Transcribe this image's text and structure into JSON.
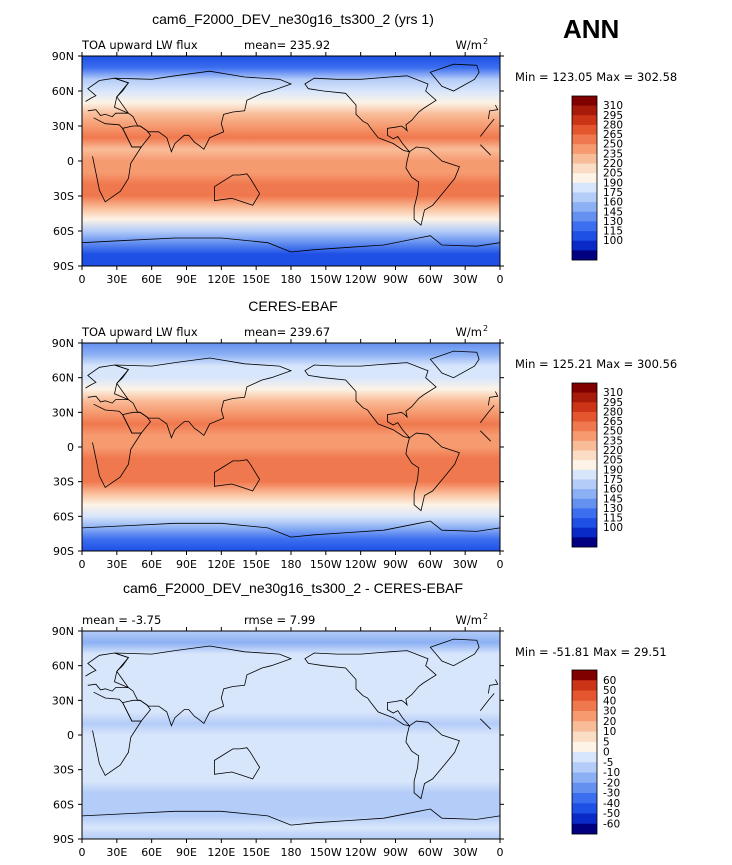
{
  "season": "ANN",
  "colors": {
    "abs_scale": [
      "#000080",
      "#0a2ac8",
      "#1e50e6",
      "#3c6ef0",
      "#6490f0",
      "#8cb0f4",
      "#b4ccf8",
      "#d8e6fb",
      "#fdf3e6",
      "#fbdcc4",
      "#f9bc98",
      "#f69a70",
      "#f0784e",
      "#e4562e",
      "#cc3418",
      "#a81a0a",
      "#800000"
    ],
    "diff_scale": [
      "#000080",
      "#0a2ac8",
      "#1e50e6",
      "#3c6ef0",
      "#6490f0",
      "#8cb0f4",
      "#b4ccf8",
      "#d8e6fb",
      "#fdf3e6",
      "#fbdcc4",
      "#f9bc98",
      "#f69a70",
      "#f0784e",
      "#e4562e",
      "#cc3418",
      "#800000"
    ]
  },
  "chart_data": [
    {
      "type": "heatmap",
      "title": "cam6_F2000_DEV_ne30g16_ts300_2 (yrs 1)",
      "left_label": "TOA upward LW flux",
      "stat1": "mean= 235.92",
      "stat2": "",
      "units": "W/m",
      "units_sup": "2",
      "minmax": "Min = 123.05 Max = 302.58",
      "min": 123.05,
      "max": 302.58,
      "mean": 235.92,
      "colorbar_levels": [
        "310",
        "295",
        "280",
        "265",
        "250",
        "235",
        "220",
        "205",
        "190",
        "175",
        "160",
        "145",
        "130",
        "115",
        "100"
      ],
      "xticks": [
        "0",
        "30E",
        "60E",
        "90E",
        "120E",
        "150E",
        "180",
        "150W",
        "120W",
        "90W",
        "60W",
        "30W",
        "0"
      ],
      "yticks": [
        "90N",
        "60N",
        "30N",
        "0",
        "30S",
        "60S",
        "90S"
      ],
      "bands": [
        {
          "lat": 90,
          "v": 125
        },
        {
          "lat": 80,
          "v": 140
        },
        {
          "lat": 70,
          "v": 190
        },
        {
          "lat": 60,
          "v": 200
        },
        {
          "lat": 50,
          "v": 212
        },
        {
          "lat": 40,
          "v": 238
        },
        {
          "lat": 30,
          "v": 262
        },
        {
          "lat": 20,
          "v": 276
        },
        {
          "lat": 10,
          "v": 250
        },
        {
          "lat": 0,
          "v": 262
        },
        {
          "lat": -10,
          "v": 265
        },
        {
          "lat": -20,
          "v": 276
        },
        {
          "lat": -30,
          "v": 268
        },
        {
          "lat": -40,
          "v": 245
        },
        {
          "lat": -50,
          "v": 215
        },
        {
          "lat": -60,
          "v": 190
        },
        {
          "lat": -70,
          "v": 160
        },
        {
          "lat": -80,
          "v": 128
        },
        {
          "lat": -90,
          "v": 118
        }
      ]
    },
    {
      "type": "heatmap",
      "title": "CERES-EBAF",
      "left_label": "TOA upward LW flux",
      "stat1": "mean= 239.67",
      "stat2": "",
      "units": "W/m",
      "units_sup": "2",
      "minmax": "Min = 125.21 Max = 300.56",
      "min": 125.21,
      "max": 300.56,
      "mean": 239.67,
      "colorbar_levels": [
        "310",
        "295",
        "280",
        "265",
        "250",
        "235",
        "220",
        "205",
        "190",
        "175",
        "160",
        "145",
        "130",
        "115",
        "100"
      ],
      "xticks": [
        "0",
        "30E",
        "60E",
        "90E",
        "120E",
        "150E",
        "180",
        "150W",
        "120W",
        "90W",
        "60W",
        "30W",
        "0"
      ],
      "yticks": [
        "90N",
        "60N",
        "30N",
        "0",
        "30S",
        "60S",
        "90S"
      ],
      "bands": [
        {
          "lat": 90,
          "v": 160
        },
        {
          "lat": 80,
          "v": 175
        },
        {
          "lat": 70,
          "v": 195
        },
        {
          "lat": 60,
          "v": 205
        },
        {
          "lat": 50,
          "v": 218
        },
        {
          "lat": 40,
          "v": 240
        },
        {
          "lat": 30,
          "v": 265
        },
        {
          "lat": 20,
          "v": 278
        },
        {
          "lat": 10,
          "v": 255
        },
        {
          "lat": 0,
          "v": 265
        },
        {
          "lat": -10,
          "v": 270
        },
        {
          "lat": -20,
          "v": 278
        },
        {
          "lat": -30,
          "v": 270
        },
        {
          "lat": -40,
          "v": 248
        },
        {
          "lat": -50,
          "v": 220
        },
        {
          "lat": -60,
          "v": 198
        },
        {
          "lat": -70,
          "v": 165
        },
        {
          "lat": -80,
          "v": 132
        },
        {
          "lat": -90,
          "v": 126
        }
      ]
    },
    {
      "type": "heatmap",
      "title": "cam6_F2000_DEV_ne30g16_ts300_2 - CERES-EBAF",
      "left_label": "mean =   -3.75",
      "stat1": "rmse =    7.99",
      "stat2": "",
      "units": "W/m",
      "units_sup": "2",
      "minmax": "Min = -51.81 Max =  29.51",
      "min": -51.81,
      "max": 29.51,
      "mean": -3.75,
      "rmse": 7.99,
      "colorbar_levels": [
        "60",
        "50",
        "40",
        "30",
        "20",
        "10",
        "5",
        "0",
        "-5",
        "-10",
        "-20",
        "-30",
        "-40",
        "-50",
        "-60"
      ],
      "xticks": [
        "0",
        "30E",
        "60E",
        "90E",
        "120E",
        "150E",
        "180",
        "150W",
        "120W",
        "90W",
        "60W",
        "30W",
        "0"
      ],
      "yticks": [
        "90N",
        "60N",
        "30N",
        "0",
        "30S",
        "60S",
        "90S"
      ],
      "bands": [
        {
          "lat": 90,
          "v": -8
        },
        {
          "lat": 80,
          "v": -12
        },
        {
          "lat": 70,
          "v": -4
        },
        {
          "lat": 60,
          "v": -3
        },
        {
          "lat": 50,
          "v": -2
        },
        {
          "lat": 40,
          "v": -2
        },
        {
          "lat": 30,
          "v": -3
        },
        {
          "lat": 20,
          "v": -3
        },
        {
          "lat": 10,
          "v": -5
        },
        {
          "lat": 0,
          "v": -3
        },
        {
          "lat": -10,
          "v": -4
        },
        {
          "lat": -20,
          "v": -2
        },
        {
          "lat": -30,
          "v": -2
        },
        {
          "lat": -40,
          "v": -3
        },
        {
          "lat": -50,
          "v": -5
        },
        {
          "lat": -60,
          "v": -8
        },
        {
          "lat": -70,
          "v": -6
        },
        {
          "lat": -80,
          "v": -4
        },
        {
          "lat": -90,
          "v": -6
        }
      ]
    }
  ]
}
